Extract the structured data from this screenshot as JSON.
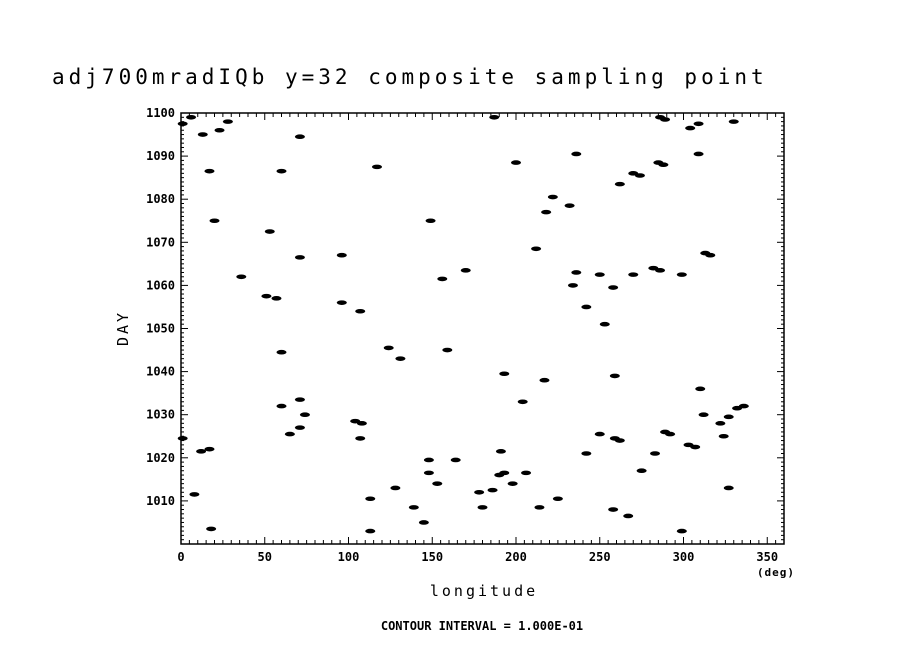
{
  "chart_data": {
    "type": "scatter",
    "title": "adj700mradIQb y=32 composite sampling point",
    "xlabel": "longitude",
    "xunit": "(deg)",
    "ylabel": "DAY",
    "xlim": [
      0,
      360
    ],
    "ylim": [
      1000,
      1100
    ],
    "xticks": [
      "0",
      "50",
      "100",
      "150",
      "200",
      "250",
      "300",
      "350"
    ],
    "yticks": [
      "1010",
      "1020",
      "1030",
      "1040",
      "1050",
      "1060",
      "1070",
      "1080",
      "1090",
      "1100"
    ],
    "footer": "CONTOUR INTERVAL = 1.000E-01",
    "points": [
      {
        "x": 1,
        "y": 1097.5
      },
      {
        "x": 6,
        "y": 1099
      },
      {
        "x": 13,
        "y": 1095
      },
      {
        "x": 23,
        "y": 1096
      },
      {
        "x": 28,
        "y": 1098
      },
      {
        "x": 17,
        "y": 1086.5
      },
      {
        "x": 20,
        "y": 1075
      },
      {
        "x": 36,
        "y": 1062
      },
      {
        "x": 51,
        "y": 1057.5
      },
      {
        "x": 53,
        "y": 1072.5
      },
      {
        "x": 57,
        "y": 1057
      },
      {
        "x": 60,
        "y": 1086.5
      },
      {
        "x": 71,
        "y": 1094.5
      },
      {
        "x": 71,
        "y": 1066.5
      },
      {
        "x": 96,
        "y": 1067
      },
      {
        "x": 96,
        "y": 1056
      },
      {
        "x": 107,
        "y": 1054
      },
      {
        "x": 117,
        "y": 1087.5
      },
      {
        "x": 60,
        "y": 1044.5
      },
      {
        "x": 60,
        "y": 1032
      },
      {
        "x": 65,
        "y": 1025.5
      },
      {
        "x": 71,
        "y": 1033.5
      },
      {
        "x": 71,
        "y": 1027
      },
      {
        "x": 74,
        "y": 1030
      },
      {
        "x": 1,
        "y": 1024.5
      },
      {
        "x": 12,
        "y": 1021.5
      },
      {
        "x": 17,
        "y": 1022
      },
      {
        "x": 8,
        "y": 1011.5
      },
      {
        "x": 18,
        "y": 1003.5
      },
      {
        "x": 104,
        "y": 1028.5
      },
      {
        "x": 107,
        "y": 1024.5
      },
      {
        "x": 108,
        "y": 1028
      },
      {
        "x": 113,
        "y": 1010.5
      },
      {
        "x": 113,
        "y": 1003
      },
      {
        "x": 124,
        "y": 1045.5
      },
      {
        "x": 131,
        "y": 1043
      },
      {
        "x": 128,
        "y": 1013
      },
      {
        "x": 139,
        "y": 1008.5
      },
      {
        "x": 145,
        "y": 1005
      },
      {
        "x": 148,
        "y": 1019.5
      },
      {
        "x": 148,
        "y": 1016.5
      },
      {
        "x": 153,
        "y": 1014
      },
      {
        "x": 149,
        "y": 1075
      },
      {
        "x": 156,
        "y": 1061.5
      },
      {
        "x": 159,
        "y": 1045
      },
      {
        "x": 164,
        "y": 1019.5
      },
      {
        "x": 170,
        "y": 1063.5
      },
      {
        "x": 178,
        "y": 1012
      },
      {
        "x": 180,
        "y": 1008.5
      },
      {
        "x": 186,
        "y": 1012.5
      },
      {
        "x": 187,
        "y": 1099
      },
      {
        "x": 191,
        "y": 1021.5
      },
      {
        "x": 190,
        "y": 1016
      },
      {
        "x": 193,
        "y": 1016.5
      },
      {
        "x": 193,
        "y": 1039.5
      },
      {
        "x": 198,
        "y": 1014
      },
      {
        "x": 200,
        "y": 1088.5
      },
      {
        "x": 204,
        "y": 1033
      },
      {
        "x": 206,
        "y": 1016.5
      },
      {
        "x": 212,
        "y": 1068.5
      },
      {
        "x": 214,
        "y": 1008.5
      },
      {
        "x": 217,
        "y": 1038
      },
      {
        "x": 218,
        "y": 1077
      },
      {
        "x": 222,
        "y": 1080.5
      },
      {
        "x": 225,
        "y": 1010.5
      },
      {
        "x": 232,
        "y": 1078.5
      },
      {
        "x": 234,
        "y": 1060
      },
      {
        "x": 236,
        "y": 1063
      },
      {
        "x": 236,
        "y": 1090.5
      },
      {
        "x": 242,
        "y": 1055
      },
      {
        "x": 242,
        "y": 1021
      },
      {
        "x": 250,
        "y": 1025.5
      },
      {
        "x": 250,
        "y": 1062.5
      },
      {
        "x": 253,
        "y": 1051
      },
      {
        "x": 258,
        "y": 1059.5
      },
      {
        "x": 259,
        "y": 1039
      },
      {
        "x": 259,
        "y": 1024.5
      },
      {
        "x": 262,
        "y": 1024
      },
      {
        "x": 258,
        "y": 1008
      },
      {
        "x": 262,
        "y": 1083.5
      },
      {
        "x": 267,
        "y": 1006.5
      },
      {
        "x": 270,
        "y": 1062.5
      },
      {
        "x": 270,
        "y": 1086
      },
      {
        "x": 274,
        "y": 1085.5
      },
      {
        "x": 275,
        "y": 1017
      },
      {
        "x": 282,
        "y": 1064
      },
      {
        "x": 286,
        "y": 1063.5
      },
      {
        "x": 283,
        "y": 1021
      },
      {
        "x": 285,
        "y": 1088.5
      },
      {
        "x": 288,
        "y": 1088
      },
      {
        "x": 286,
        "y": 1099
      },
      {
        "x": 289,
        "y": 1098.5
      },
      {
        "x": 289,
        "y": 1026
      },
      {
        "x": 292,
        "y": 1025.5
      },
      {
        "x": 299,
        "y": 1062.5
      },
      {
        "x": 299,
        "y": 1003
      },
      {
        "x": 303,
        "y": 1023
      },
      {
        "x": 307,
        "y": 1022.5
      },
      {
        "x": 304,
        "y": 1096.5
      },
      {
        "x": 309,
        "y": 1097.5
      },
      {
        "x": 309,
        "y": 1090.5
      },
      {
        "x": 310,
        "y": 1036
      },
      {
        "x": 312,
        "y": 1030
      },
      {
        "x": 313,
        "y": 1067.5
      },
      {
        "x": 316,
        "y": 1067
      },
      {
        "x": 322,
        "y": 1028
      },
      {
        "x": 324,
        "y": 1025
      },
      {
        "x": 327,
        "y": 1029.5
      },
      {
        "x": 327,
        "y": 1013
      },
      {
        "x": 330,
        "y": 1098
      },
      {
        "x": 332,
        "y": 1031.5
      },
      {
        "x": 336,
        "y": 1032
      }
    ]
  }
}
